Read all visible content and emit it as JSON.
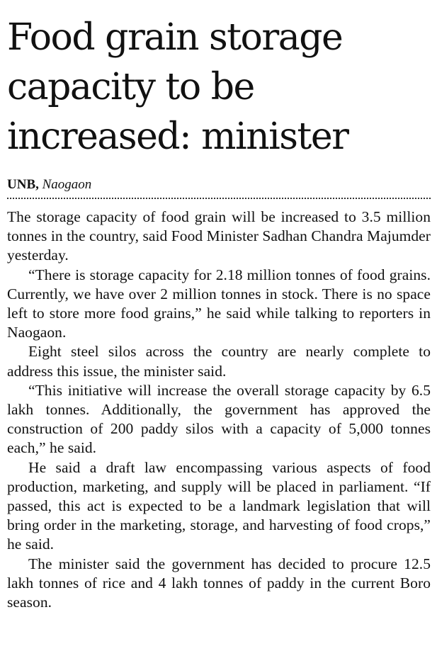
{
  "article": {
    "headline": "Food grain storage capacity to be increased: minister",
    "byline": {
      "agency": "UNB,",
      "location": "Naogaon"
    },
    "paragraphs": [
      "The storage capacity of food grain will be increased to 3.5 million tonnes in the country, said Food Minister Sadhan Chandra Majumder yesterday.",
      "“There is storage capacity for 2.18 million tonnes of food grains. Currently, we have over 2 million tonnes in stock. There is no space left to store more food grains,” he said while talking to reporters in Naogaon.",
      "Eight steel silos across the country are nearly complete to address this issue, the minister said.",
      "“This initiative will increase the overall storage capacity by 6.5 lakh tonnes. Additionally, the government has approved the construction of 200 paddy silos with a capacity of 5,000 tonnes each,” he said.",
      "He said a draft law encompassing various aspects of food production, marketing, and supply will be placed in parliament. “If passed, this act is expected to be a landmark legislation that will bring order in the marketing, storage, and harvesting of food crops,” he said.",
      "The minister said the government has decided to procure 12.5 lakh tonnes of rice and 4 lakh tonnes of paddy in the current Boro season."
    ]
  }
}
